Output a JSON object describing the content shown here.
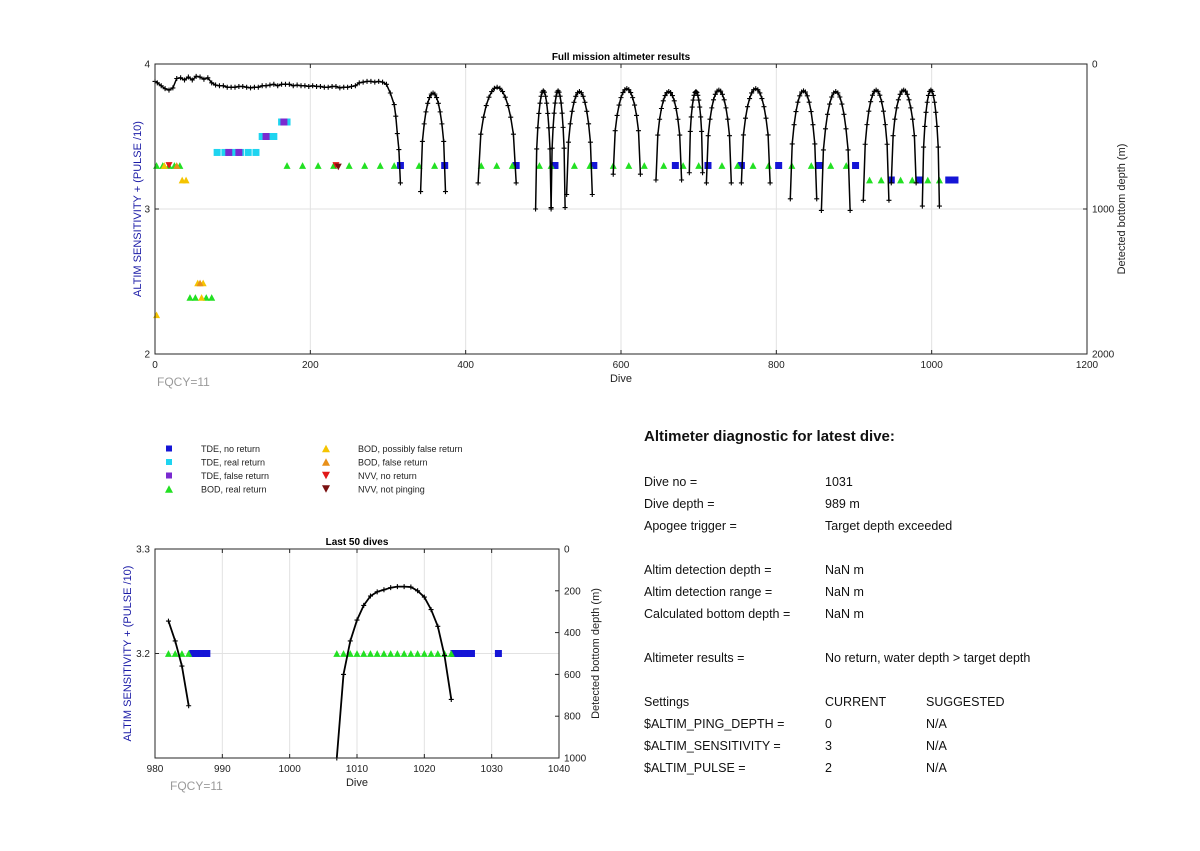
{
  "chart_data": [
    {
      "type": "scatter",
      "title": "Full mission altimeter results",
      "xlabel": "Dive",
      "ylabel": "ALTIM SENSITIVITY + (PULSE /10)",
      "y2label": "Detected bottom depth (m)",
      "xlim": [
        0,
        1200
      ],
      "ylim": [
        2,
        4
      ],
      "y2lim": [
        0,
        2000
      ],
      "y2_reversed": true,
      "xticks": [
        "0",
        "200",
        "400",
        "600",
        "800",
        "1000",
        "1200"
      ],
      "yticks": [
        "2",
        "3",
        "4"
      ],
      "y2ticks": [
        "0",
        "1000",
        "2000"
      ],
      "note": "FQCY=11",
      "grid": true,
      "series": [
        {
          "name": "TDE, no return",
          "marker": "square",
          "color": "#1515d6",
          "points": [
            [
              316,
              3.3
            ],
            [
              373,
              3.3
            ],
            [
              465,
              3.3
            ],
            [
              515,
              3.3
            ],
            [
              565,
              3.3
            ],
            [
              670,
              3.3
            ],
            [
              712,
              3.3
            ],
            [
              755,
              3.3
            ],
            [
              803,
              3.3
            ],
            [
              855,
              3.3
            ],
            [
              902,
              3.3
            ],
            [
              948,
              3.2
            ],
            [
              985,
              3.2
            ],
            [
              1022,
              3.2
            ],
            [
              1030,
              3.2
            ]
          ]
        },
        {
          "name": "TDE, real return",
          "marker": "square",
          "color": "#1ed4f0",
          "points": [
            [
              80,
              3.39
            ],
            [
              90,
              3.39
            ],
            [
              100,
              3.39
            ],
            [
              110,
              3.39
            ],
            [
              120,
              3.39
            ],
            [
              130,
              3.39
            ],
            [
              138,
              3.5
            ],
            [
              146,
              3.5
            ],
            [
              153,
              3.5
            ],
            [
              163,
              3.6
            ],
            [
              170,
              3.6
            ]
          ]
        },
        {
          "name": "TDE, false return",
          "marker": "square",
          "color": "#7a2ad0",
          "points": [
            [
              95,
              3.39
            ],
            [
              108,
              3.39
            ],
            [
              143,
              3.5
            ],
            [
              166,
              3.6
            ]
          ]
        },
        {
          "name": "BOD, real return",
          "marker": "triangle-up",
          "color": "#22e022",
          "points": [
            [
              2,
              3.3
            ],
            [
              10,
              3.3
            ],
            [
              18,
              3.3
            ],
            [
              25,
              3.3
            ],
            [
              32,
              3.3
            ],
            [
              45,
              2.39
            ],
            [
              52,
              2.39
            ],
            [
              66,
              2.39
            ],
            [
              73,
              2.39
            ],
            [
              170,
              3.3
            ],
            [
              190,
              3.3
            ],
            [
              210,
              3.3
            ],
            [
              230,
              3.3
            ],
            [
              250,
              3.3
            ],
            [
              270,
              3.3
            ],
            [
              290,
              3.3
            ],
            [
              308,
              3.3
            ],
            [
              340,
              3.3
            ],
            [
              360,
              3.3
            ],
            [
              420,
              3.3
            ],
            [
              440,
              3.3
            ],
            [
              460,
              3.3
            ],
            [
              495,
              3.3
            ],
            [
              510,
              3.3
            ],
            [
              540,
              3.3
            ],
            [
              560,
              3.3
            ],
            [
              590,
              3.3
            ],
            [
              610,
              3.3
            ],
            [
              630,
              3.3
            ],
            [
              655,
              3.3
            ],
            [
              680,
              3.3
            ],
            [
              700,
              3.3
            ],
            [
              730,
              3.3
            ],
            [
              750,
              3.3
            ],
            [
              770,
              3.3
            ],
            [
              790,
              3.3
            ],
            [
              820,
              3.3
            ],
            [
              845,
              3.3
            ],
            [
              870,
              3.3
            ],
            [
              890,
              3.3
            ],
            [
              920,
              3.2
            ],
            [
              935,
              3.2
            ],
            [
              960,
              3.2
            ],
            [
              975,
              3.2
            ],
            [
              995,
              3.2
            ],
            [
              1010,
              3.2
            ]
          ]
        },
        {
          "name": "BOD, possibly false return",
          "marker": "triangle-up",
          "color": "#f5c400",
          "points": [
            [
              2,
              2.27
            ],
            [
              35,
              3.2
            ],
            [
              40,
              3.2
            ],
            [
              55,
              2.49
            ],
            [
              62,
              2.49
            ],
            [
              60,
              2.39
            ],
            [
              12,
              3.3
            ]
          ]
        },
        {
          "name": "BOD, false return",
          "marker": "triangle-up",
          "color": "#e8901a",
          "points": [
            [
              28,
              3.3
            ],
            [
              58,
              2.49
            ]
          ]
        },
        {
          "name": "NVV, no return",
          "marker": "triangle-down",
          "color": "#e01818",
          "points": [
            [
              18,
              3.3
            ],
            [
              233,
              3.3
            ]
          ]
        },
        {
          "name": "NVV, not pinging",
          "marker": "triangle-down",
          "color": "#7a1010",
          "points": [
            [
              236,
              3.29
            ]
          ]
        }
      ],
      "depth_trace": {
        "name": "Detected bottom depth",
        "color": "#000000",
        "dive": [
          0,
          3,
          8,
          13,
          18,
          23,
          28,
          33,
          38,
          43,
          48,
          53,
          58,
          63,
          68,
          73,
          78,
          83,
          88,
          93,
          98,
          103,
          108,
          113,
          118,
          123,
          128,
          133,
          138,
          143,
          148,
          153,
          158,
          163,
          168,
          173,
          178,
          183,
          188,
          193,
          198,
          203,
          208,
          213,
          218,
          223,
          228,
          233,
          238,
          243,
          248,
          253,
          258,
          263,
          268,
          273,
          278,
          283,
          288,
          293,
          298,
          303,
          308,
          310,
          312,
          314,
          316
        ],
        "depth_m": [
          120,
          130,
          150,
          170,
          180,
          165,
          100,
          95,
          110,
          90,
          110,
          85,
          90,
          105,
          95,
          130,
          145,
          150,
          150,
          160,
          160,
          160,
          155,
          155,
          160,
          165,
          160,
          160,
          150,
          150,
          145,
          140,
          150,
          140,
          140,
          140,
          150,
          145,
          150,
          150,
          155,
          150,
          155,
          155,
          160,
          160,
          155,
          155,
          165,
          160,
          160,
          155,
          150,
          130,
          125,
          120,
          120,
          125,
          120,
          125,
          140,
          200,
          280,
          360,
          480,
          590,
          820
        ],
        "arches": [
          {
            "from": 342,
            "to": 374,
            "min": 200,
            "max": 880
          },
          {
            "from": 416,
            "to": 465,
            "min": 160,
            "max": 820
          },
          {
            "from": 490,
            "to": 510,
            "min": 185,
            "max": 1000
          },
          {
            "from": 510,
            "to": 528,
            "min": 185,
            "max": 990
          },
          {
            "from": 530,
            "to": 563,
            "min": 190,
            "max": 900
          },
          {
            "from": 590,
            "to": 625,
            "min": 170,
            "max": 760
          },
          {
            "from": 645,
            "to": 678,
            "min": 190,
            "max": 800
          },
          {
            "from": 688,
            "to": 705,
            "min": 190,
            "max": 750
          },
          {
            "from": 710,
            "to": 742,
            "min": 180,
            "max": 820
          },
          {
            "from": 755,
            "to": 792,
            "min": 170,
            "max": 820
          },
          {
            "from": 818,
            "to": 852,
            "min": 185,
            "max": 930
          },
          {
            "from": 858,
            "to": 895,
            "min": 190,
            "max": 1010
          },
          {
            "from": 912,
            "to": 945,
            "min": 180,
            "max": 940
          },
          {
            "from": 948,
            "to": 980,
            "min": 180,
            "max": 820
          },
          {
            "from": 988,
            "to": 1010,
            "min": 180,
            "max": 980
          }
        ]
      }
    },
    {
      "type": "scatter",
      "title": "Last 50 dives",
      "xlabel": "Dive",
      "ylabel": "ALTIM SENSITIVITY + (PULSE /10)",
      "y2label": "Detected bottom depth (m)",
      "xlim": [
        980,
        1040
      ],
      "ylim": [
        3.1,
        3.3
      ],
      "y2lim": [
        0,
        1000
      ],
      "y2_reversed": true,
      "xticks": [
        "980",
        "990",
        "1000",
        "1010",
        "1020",
        "1030",
        "1040"
      ],
      "yticks": [
        "3.3",
        "3.2"
      ],
      "y2ticks": [
        "0",
        "200",
        "400",
        "600",
        "800",
        "1000"
      ],
      "note": "FQCY=11",
      "grid": true,
      "series": [
        {
          "name": "TDE, no return",
          "marker": "square",
          "color": "#1515d6",
          "points": [
            [
              985.6,
              3.2
            ],
            [
              986.3,
              3.2
            ],
            [
              987,
              3.2
            ],
            [
              987.7,
              3.2
            ],
            [
              1024.4,
              3.2
            ],
            [
              1025.2,
              3.2
            ],
            [
              1026,
              3.2
            ],
            [
              1027,
              3.2
            ],
            [
              1031,
              3.2
            ]
          ]
        },
        {
          "name": "BOD, real return",
          "marker": "triangle-up",
          "color": "#22e022",
          "points": [
            [
              982,
              3.2
            ],
            [
              983,
              3.2
            ],
            [
              984,
              3.2
            ],
            [
              985,
              3.2
            ],
            [
              1007,
              3.2
            ],
            [
              1008,
              3.2
            ],
            [
              1009,
              3.2
            ],
            [
              1010,
              3.2
            ],
            [
              1011,
              3.2
            ],
            [
              1012,
              3.2
            ],
            [
              1013,
              3.2
            ],
            [
              1014,
              3.2
            ],
            [
              1015,
              3.2
            ],
            [
              1016,
              3.2
            ],
            [
              1017,
              3.2
            ],
            [
              1018,
              3.2
            ],
            [
              1019,
              3.2
            ],
            [
              1020,
              3.2
            ],
            [
              1021,
              3.2
            ],
            [
              1022,
              3.2
            ],
            [
              1023,
              3.2
            ],
            [
              1024,
              3.2
            ]
          ]
        }
      ],
      "depth_trace": {
        "name": "Detected bottom depth",
        "color": "#000000",
        "segments": [
          {
            "dive": [
              982,
              983,
              984,
              985
            ],
            "depth_m": [
              345,
              440,
              560,
              750
            ]
          },
          {
            "dive": [
              1007,
              1008,
              1009,
              1010,
              1011,
              1012,
              1013,
              1014,
              1015,
              1016,
              1017,
              1018,
              1019,
              1020,
              1021,
              1022,
              1023,
              1024
            ],
            "depth_m": [
              1000,
              600,
              440,
              340,
              270,
              225,
              205,
              195,
              185,
              180,
              180,
              182,
              200,
              230,
              290,
              370,
              510,
              720
            ]
          }
        ]
      }
    }
  ],
  "legend": {
    "left": [
      {
        "label": "TDE, no return",
        "marker": "square",
        "color": "#1515d6"
      },
      {
        "label": "TDE, real return",
        "marker": "square",
        "color": "#1ed4f0"
      },
      {
        "label": "TDE, false return",
        "marker": "square",
        "color": "#7a2ad0"
      },
      {
        "label": "BOD, real return",
        "marker": "triangle-up",
        "color": "#22e022"
      }
    ],
    "right": [
      {
        "label": "BOD, possibly false return",
        "marker": "triangle-up",
        "color": "#f5c400"
      },
      {
        "label": "BOD, false return",
        "marker": "triangle-up",
        "color": "#e8901a"
      },
      {
        "label": "NVV, no return",
        "marker": "triangle-down",
        "color": "#e01818"
      },
      {
        "label": "NVV, not pinging",
        "marker": "triangle-down",
        "color": "#7a1010"
      }
    ]
  },
  "diagnostic": {
    "title": "Altimeter diagnostic for latest dive:",
    "dive_no_label": "Dive no =",
    "dive_no": "1031",
    "dive_depth_label": "Dive depth =",
    "dive_depth": "989 m",
    "apogee_label": "Apogee trigger =",
    "apogee": "Target depth exceeded",
    "det_depth_label": "Altim detection depth =",
    "det_depth": "NaN m",
    "det_range_label": "Altim detection range =",
    "det_range": "NaN m",
    "calc_depth_label": "Calculated bottom depth =",
    "calc_depth": "NaN m",
    "results_label": "Altimeter results =",
    "results": "No return, water depth > target depth",
    "settings": {
      "header": [
        "Settings",
        "CURRENT",
        "SUGGESTED"
      ],
      "rows": [
        [
          "$ALTIM_PING_DEPTH =",
          "0",
          "N/A"
        ],
        [
          "$ALTIM_SENSITIVITY =",
          "3",
          "N/A"
        ],
        [
          "$ALTIM_PULSE =",
          "2",
          "N/A"
        ]
      ]
    }
  }
}
